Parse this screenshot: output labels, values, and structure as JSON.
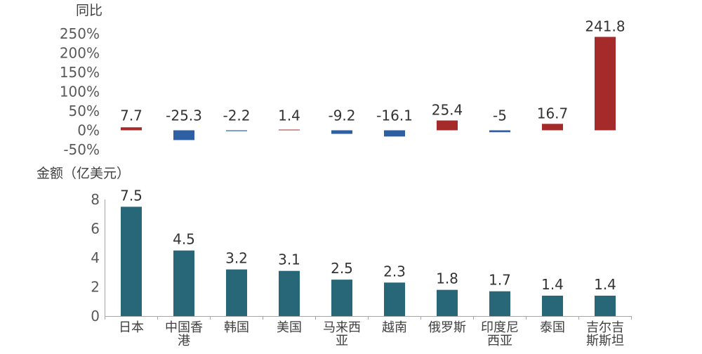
{
  "chart_data": [
    {
      "type": "bar",
      "ylabel": "同比",
      "categories": [
        "日本",
        "中国香港",
        "韩国",
        "美国",
        "马来西亚",
        "越南",
        "俄罗斯",
        "印度尼西亚",
        "泰国",
        "吉尔吉斯斯坦"
      ],
      "values": [
        7.7,
        -25.3,
        -2.2,
        1.4,
        -9.2,
        -16.1,
        25.4,
        -5,
        16.7,
        241.8
      ],
      "data_labels": [
        "7.7",
        "-25.3",
        "-2.2",
        "1.4",
        "-9.2",
        "-16.1",
        "25.4",
        "-5",
        "16.7",
        "241.8"
      ],
      "ylim": [
        -50,
        250
      ],
      "yticks": [
        -50,
        0,
        50,
        100,
        150,
        200,
        250
      ],
      "ytick_labels": [
        "-50%",
        "0%",
        "50%",
        "100%",
        "150%",
        "200%",
        "250%"
      ],
      "colors": {
        "positive": "#A52A2A",
        "negative": "#2E5FA3"
      },
      "grid": false
    },
    {
      "type": "bar",
      "ylabel": "金额（亿美元）",
      "categories": [
        "日本",
        "中国香港",
        "韩国",
        "美国",
        "马来西亚",
        "越南",
        "俄罗斯",
        "印度尼西亚",
        "泰国",
        "吉尔吉斯斯坦"
      ],
      "category_label_lines": [
        [
          "日本"
        ],
        [
          "中国香",
          "港"
        ],
        [
          "韩国"
        ],
        [
          "美国"
        ],
        [
          "马来西",
          "亚"
        ],
        [
          "越南"
        ],
        [
          "俄罗斯"
        ],
        [
          "印度尼",
          "西亚"
        ],
        [
          "泰国"
        ],
        [
          "吉尔吉",
          "斯斯坦"
        ]
      ],
      "values": [
        7.5,
        4.5,
        3.2,
        3.1,
        2.5,
        2.3,
        1.8,
        1.7,
        1.4,
        1.4
      ],
      "data_labels": [
        "7.5",
        "4.5",
        "3.2",
        "3.1",
        "2.5",
        "2.3",
        "1.8",
        "1.7",
        "1.4",
        "1.4"
      ],
      "ylim": [
        0,
        8
      ],
      "yticks": [
        0,
        2,
        4,
        6,
        8
      ],
      "ytick_labels": [
        "0",
        "2",
        "4",
        "6",
        "8"
      ],
      "colors": {
        "bar": "#276778",
        "axis": "#A6A6A6"
      },
      "grid": false
    }
  ]
}
